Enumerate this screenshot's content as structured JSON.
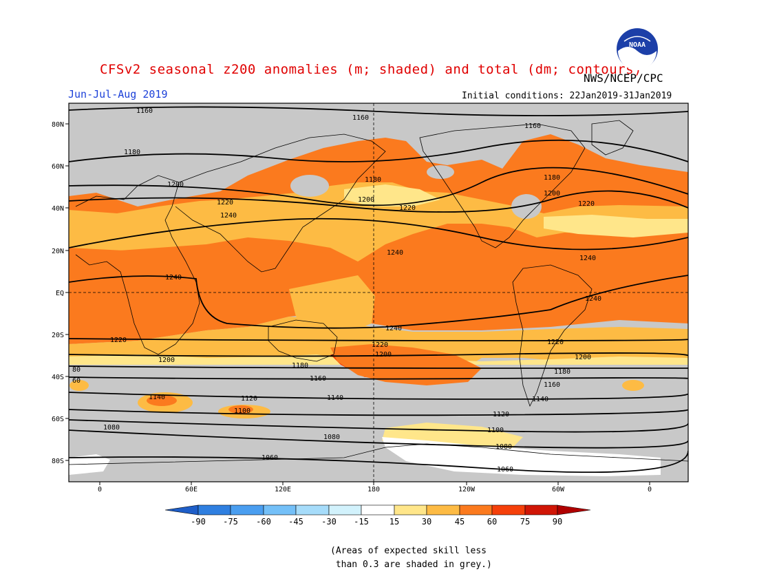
{
  "title": "CFSv2 seasonal z200 anomalies (m; shaded) and total (dm; contours)",
  "organization": "NWS/NCEP/CPC",
  "logo_text": "NOAA",
  "period": "Jun-Jul-Aug 2019",
  "initial_conditions": "Initial conditions: 22Jan2019-31Jan2019",
  "latitude_labels": [
    "80N",
    "60N",
    "40N",
    "20N",
    "EQ",
    "20S",
    "40S",
    "60S",
    "80S"
  ],
  "longitude_labels": [
    "0",
    "60E",
    "120E",
    "180",
    "120W",
    "60W",
    "0"
  ],
  "colorbar": {
    "tick_labels": [
      "-90",
      "-75",
      "-60",
      "-45",
      "-30",
      "-15",
      "15",
      "30",
      "45",
      "60",
      "75",
      "90"
    ],
    "colors": [
      "#1e5ec8",
      "#2f7fe0",
      "#4a9ef0",
      "#74c0f8",
      "#a6dcfa",
      "#d2f2fc",
      "#ffffff",
      "#ffe68a",
      "#fdbb44",
      "#fb7a1e",
      "#f5400a",
      "#d01606",
      "#b00000"
    ]
  },
  "contour_labels": [
    "1060",
    "1080",
    "1100",
    "1120",
    "1140",
    "1160",
    "1180",
    "1200",
    "1220",
    "1240",
    "80",
    "60"
  ],
  "footnote": {
    "line1": "(Areas of expected skill less",
    "line2": " than 0.3 are shaded in grey.)"
  },
  "colors": {
    "skill_grey": "#c8c8c8",
    "title_red": "#e00000",
    "period_blue": "#1a3fd8"
  }
}
